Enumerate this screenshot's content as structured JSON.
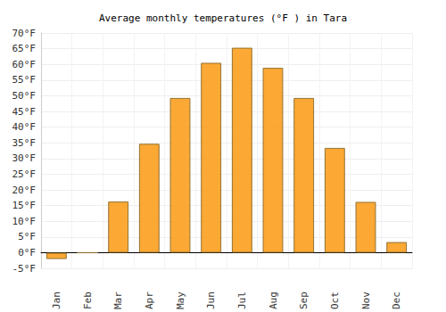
{
  "chart_data": {
    "type": "bar",
    "title": "Average monthly temperatures (°F ) in Tara",
    "categories": [
      "Jan",
      "Feb",
      "Mar",
      "Apr",
      "May",
      "Jun",
      "Jul",
      "Aug",
      "Sep",
      "Oct",
      "Nov",
      "Dec"
    ],
    "values": [
      -2,
      0,
      16.3,
      34.7,
      49.3,
      60.5,
      65.3,
      58.9,
      49.3,
      33.4,
      16.2,
      3.4
    ],
    "color": "#fba124",
    "ylim": [
      -5,
      70
    ],
    "yticks": [
      {
        "value": -5,
        "label": "-5°F"
      },
      {
        "value": 0,
        "label": "0°F"
      },
      {
        "value": 5,
        "label": "5°F"
      },
      {
        "value": 10,
        "label": "10°F"
      },
      {
        "value": 15,
        "label": "15°F"
      },
      {
        "value": 20,
        "label": "20°F"
      },
      {
        "value": 25,
        "label": "25°F"
      },
      {
        "value": 30,
        "label": "30°F"
      },
      {
        "value": 35,
        "label": "35°F"
      },
      {
        "value": 40,
        "label": "40°F"
      },
      {
        "value": 45,
        "label": "45°F"
      },
      {
        "value": 50,
        "label": "50°F"
      },
      {
        "value": 55,
        "label": "55°F"
      },
      {
        "value": 60,
        "label": "60°F"
      },
      {
        "value": 65,
        "label": "65°F"
      },
      {
        "value": 70,
        "label": "70°F"
      }
    ],
    "grid": true
  }
}
